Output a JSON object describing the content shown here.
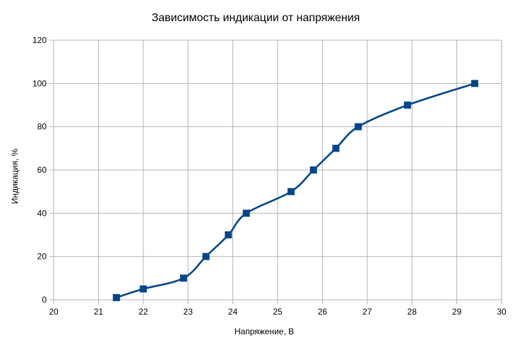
{
  "chart_data": {
    "type": "line",
    "title": "Зависимость индикации от напряжения",
    "xlabel": "Напряжение, В",
    "ylabel": "Индикация, %",
    "xlim": [
      20,
      30
    ],
    "ylim": [
      0,
      120
    ],
    "x_ticks": [
      "20",
      "21",
      "22",
      "23",
      "24",
      "25",
      "26",
      "27",
      "28",
      "29",
      "30"
    ],
    "y_ticks": [
      "0",
      "20",
      "40",
      "60",
      "80",
      "100",
      "120"
    ],
    "grid": true,
    "smooth": true,
    "marker": "square",
    "series": [
      {
        "color": "#004586",
        "x": [
          21.4,
          22.0,
          22.9,
          23.4,
          23.9,
          24.3,
          25.3,
          25.8,
          26.3,
          26.8,
          27.9,
          29.4
        ],
        "y": [
          1,
          5,
          10,
          20,
          30,
          40,
          50,
          60,
          70,
          80,
          90,
          100
        ]
      }
    ]
  }
}
